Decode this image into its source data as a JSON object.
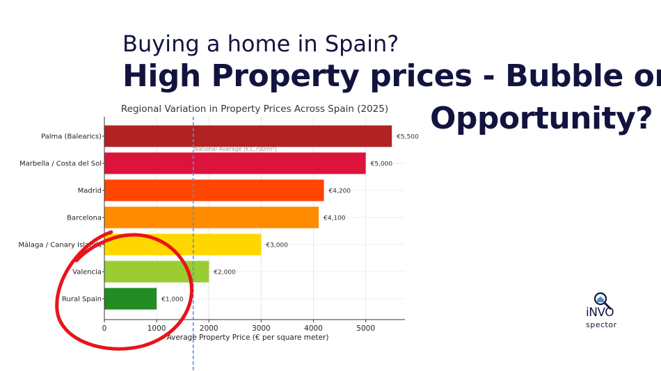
{
  "headline": {
    "subtitle": "Buying a home in Spain?",
    "main_line1": "High Property prices - Bubble or",
    "main_line2": "Opportunity?"
  },
  "logo": {
    "line1": "iNVO",
    "line2": "spector",
    "icon": "magnifier-house-icon"
  },
  "chart_data": {
    "type": "bar",
    "orientation": "horizontal",
    "title": "Regional Variation in Property Prices Across Spain (2025)",
    "xlabel": "Average Property Price (€ per square meter)",
    "ylabel": "",
    "xlim": [
      0,
      5750
    ],
    "xticks": [
      0,
      1000,
      2000,
      3000,
      4000,
      5000
    ],
    "grid": true,
    "categories": [
      "Palma (Balearics)",
      "Marbella / Costa del Sol",
      "Madrid",
      "Barcelona",
      "Málaga / Canary Islands",
      "Valencia",
      "Rural Spain"
    ],
    "values": [
      5500,
      5000,
      4200,
      4100,
      3000,
      2000,
      1000
    ],
    "value_labels": [
      "€5,500",
      "€5,000",
      "€4,200",
      "€4,100",
      "€3,000",
      "€2,000",
      "€1,000"
    ],
    "colors": [
      "#b22222",
      "#dc143c",
      "#ff4500",
      "#ff8c00",
      "#ffd700",
      "#9acd32",
      "#228b22"
    ],
    "reference_line": {
      "value": 1700,
      "label": "National Average (€1,700/m²)",
      "color": "#5b8fd6"
    },
    "annotation": {
      "shape": "hand-drawn circle",
      "color": "#e8141b"
    }
  }
}
